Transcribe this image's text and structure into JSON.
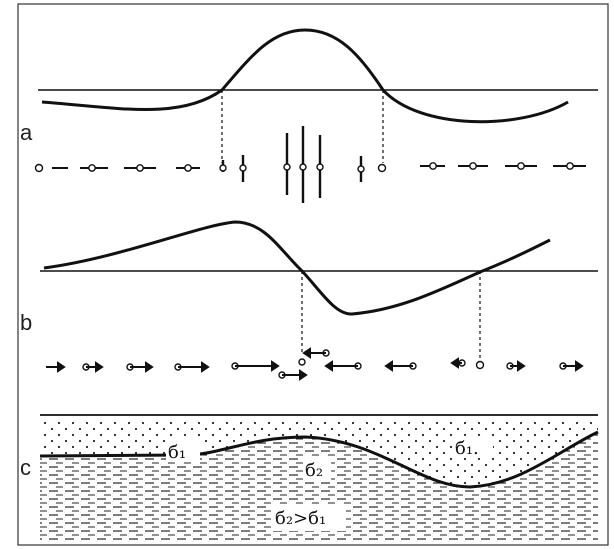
{
  "panels": [
    {
      "id": "a",
      "label": "a"
    },
    {
      "id": "b",
      "label": "b"
    },
    {
      "id": "c",
      "label": "c"
    }
  ],
  "layers": {
    "upper": "б₁",
    "upper_right": "б₁.",
    "lower": "б₂",
    "relation": "б₂>б₁"
  }
}
